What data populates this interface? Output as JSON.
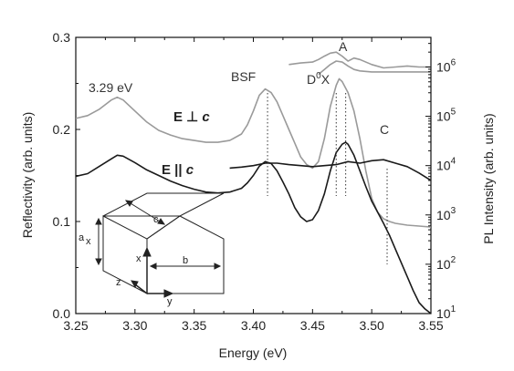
{
  "chart_data": {
    "type": "line",
    "xlabel": "Energy (eV)",
    "ylabel_left": "Reflectivity (arb. units)",
    "ylabel_right": "PL Intensity (arb. units)",
    "xlim": [
      3.25,
      3.55
    ],
    "ylim_left": [
      0.0,
      0.3
    ],
    "ylim_right_log10": [
      1,
      6.6
    ],
    "x_ticks": [
      "3.25",
      "3.30",
      "3.35",
      "3.40",
      "3.45",
      "3.50",
      "3.55"
    ],
    "y_ticks_left": [
      "0.0",
      "0.1",
      "0.2",
      "0.3"
    ],
    "y_ticks_right": [
      {
        "base": "10",
        "exp": "1"
      },
      {
        "base": "10",
        "exp": "2"
      },
      {
        "base": "10",
        "exp": "3"
      },
      {
        "base": "10",
        "exp": "4"
      },
      {
        "base": "10",
        "exp": "5"
      },
      {
        "base": "10",
        "exp": "6"
      }
    ],
    "series": [
      {
        "axis": "left",
        "color": "#9a9a9a",
        "x": [
          3.25,
          3.26,
          3.27,
          3.28,
          3.285,
          3.29,
          3.3,
          3.31,
          3.32,
          3.33,
          3.34,
          3.35,
          3.36,
          3.37,
          3.38,
          3.39,
          3.395,
          3.4,
          3.405,
          3.41,
          3.415,
          3.42,
          3.425,
          3.43,
          3.435,
          3.44,
          3.445,
          3.45,
          3.455,
          3.46,
          3.465,
          3.47,
          3.4725,
          3.475,
          3.48,
          3.485,
          3.49,
          3.495,
          3.5,
          3.505,
          3.51,
          3.515,
          3.52,
          3.525,
          3.53,
          3.54,
          3.55
        ],
        "y": [
          0.212,
          0.215,
          0.222,
          0.232,
          0.235,
          0.232,
          0.22,
          0.208,
          0.199,
          0.194,
          0.19,
          0.188,
          0.186,
          0.186,
          0.188,
          0.195,
          0.205,
          0.22,
          0.237,
          0.244,
          0.24,
          0.23,
          0.215,
          0.2,
          0.185,
          0.17,
          0.162,
          0.158,
          0.165,
          0.19,
          0.225,
          0.248,
          0.255,
          0.252,
          0.24,
          0.22,
          0.19,
          0.155,
          0.125,
          0.11,
          0.103,
          0.1,
          0.098,
          0.097,
          0.096,
          0.095,
          0.094
        ]
      },
      {
        "axis": "left",
        "color": "#1a1a1a",
        "x": [
          3.25,
          3.26,
          3.27,
          3.28,
          3.285,
          3.29,
          3.3,
          3.31,
          3.32,
          3.33,
          3.34,
          3.35,
          3.36,
          3.37,
          3.38,
          3.39,
          3.395,
          3.4,
          3.405,
          3.41,
          3.415,
          3.42,
          3.425,
          3.43,
          3.435,
          3.44,
          3.445,
          3.45,
          3.455,
          3.46,
          3.465,
          3.47,
          3.475,
          3.478,
          3.48,
          3.485,
          3.49,
          3.495,
          3.5,
          3.505,
          3.51,
          3.515,
          3.52,
          3.525,
          3.53,
          3.535,
          3.54,
          3.545,
          3.55
        ],
        "y": [
          0.149,
          0.152,
          0.16,
          0.168,
          0.172,
          0.171,
          0.164,
          0.156,
          0.15,
          0.144,
          0.139,
          0.135,
          0.132,
          0.131,
          0.132,
          0.136,
          0.142,
          0.15,
          0.16,
          0.165,
          0.163,
          0.155,
          0.143,
          0.13,
          0.115,
          0.105,
          0.1,
          0.102,
          0.112,
          0.13,
          0.155,
          0.175,
          0.184,
          0.186,
          0.184,
          0.172,
          0.155,
          0.138,
          0.122,
          0.11,
          0.098,
          0.085,
          0.07,
          0.055,
          0.04,
          0.025,
          0.012,
          0.005,
          0.0
        ]
      },
      {
        "axis": "right",
        "color": "#1a1a1a",
        "x": [
          3.38,
          3.39,
          3.4,
          3.41,
          3.42,
          3.43,
          3.44,
          3.45,
          3.46,
          3.47,
          3.48,
          3.49,
          3.5,
          3.51,
          3.52,
          3.53,
          3.54,
          3.55
        ],
        "y": [
          3.95,
          3.97,
          4.0,
          4.05,
          4.05,
          4.02,
          4.0,
          3.98,
          4.0,
          4.02,
          4.08,
          4.05,
          4.1,
          4.12,
          4.05,
          3.98,
          3.85,
          3.7
        ]
      },
      {
        "axis": "right",
        "color": "#9a9a9a",
        "x": [
          3.43,
          3.44,
          3.45,
          3.455,
          3.46,
          3.465,
          3.47,
          3.475,
          3.48,
          3.485,
          3.49,
          3.5,
          3.51,
          3.52,
          3.53,
          3.54,
          3.55
        ],
        "y": [
          6.05,
          6.08,
          6.1,
          6.15,
          6.22,
          6.28,
          6.3,
          6.22,
          6.12,
          6.18,
          6.15,
          6.05,
          5.98,
          6.0,
          6.02,
          6.0,
          6.0
        ]
      },
      {
        "axis": "right",
        "color": "#9a9a9a",
        "x": [
          3.455,
          3.46,
          3.465,
          3.47,
          3.475,
          3.48,
          3.485,
          3.49,
          3.5,
          3.51,
          3.52,
          3.53,
          3.54,
          3.55
        ],
        "y": [
          5.85,
          5.95,
          6.05,
          6.12,
          6.1,
          6.02,
          5.95,
          5.92,
          5.9,
          5.9,
          5.9,
          5.9,
          5.9,
          5.9
        ]
      }
    ],
    "annotations": {
      "label_329": "3.29 eV",
      "label_bsf": "BSF",
      "label_d0x_main": "D",
      "label_d0x_sup": "0",
      "label_d0x_end": "X",
      "label_a": "A",
      "label_c": "C",
      "label_eperp_prefix": "E ⊥ ",
      "label_eperp_c": "c",
      "label_epar_prefix": "E || ",
      "label_epar_c": "c"
    },
    "marker_lines_x": [
      3.412,
      3.47,
      3.478,
      3.513
    ],
    "inset": {
      "label_a": "a",
      "label_a_sub": "x",
      "label_c": "c",
      "label_b": "b",
      "label_x": "x",
      "label_y": "y",
      "label_z": "z"
    }
  }
}
